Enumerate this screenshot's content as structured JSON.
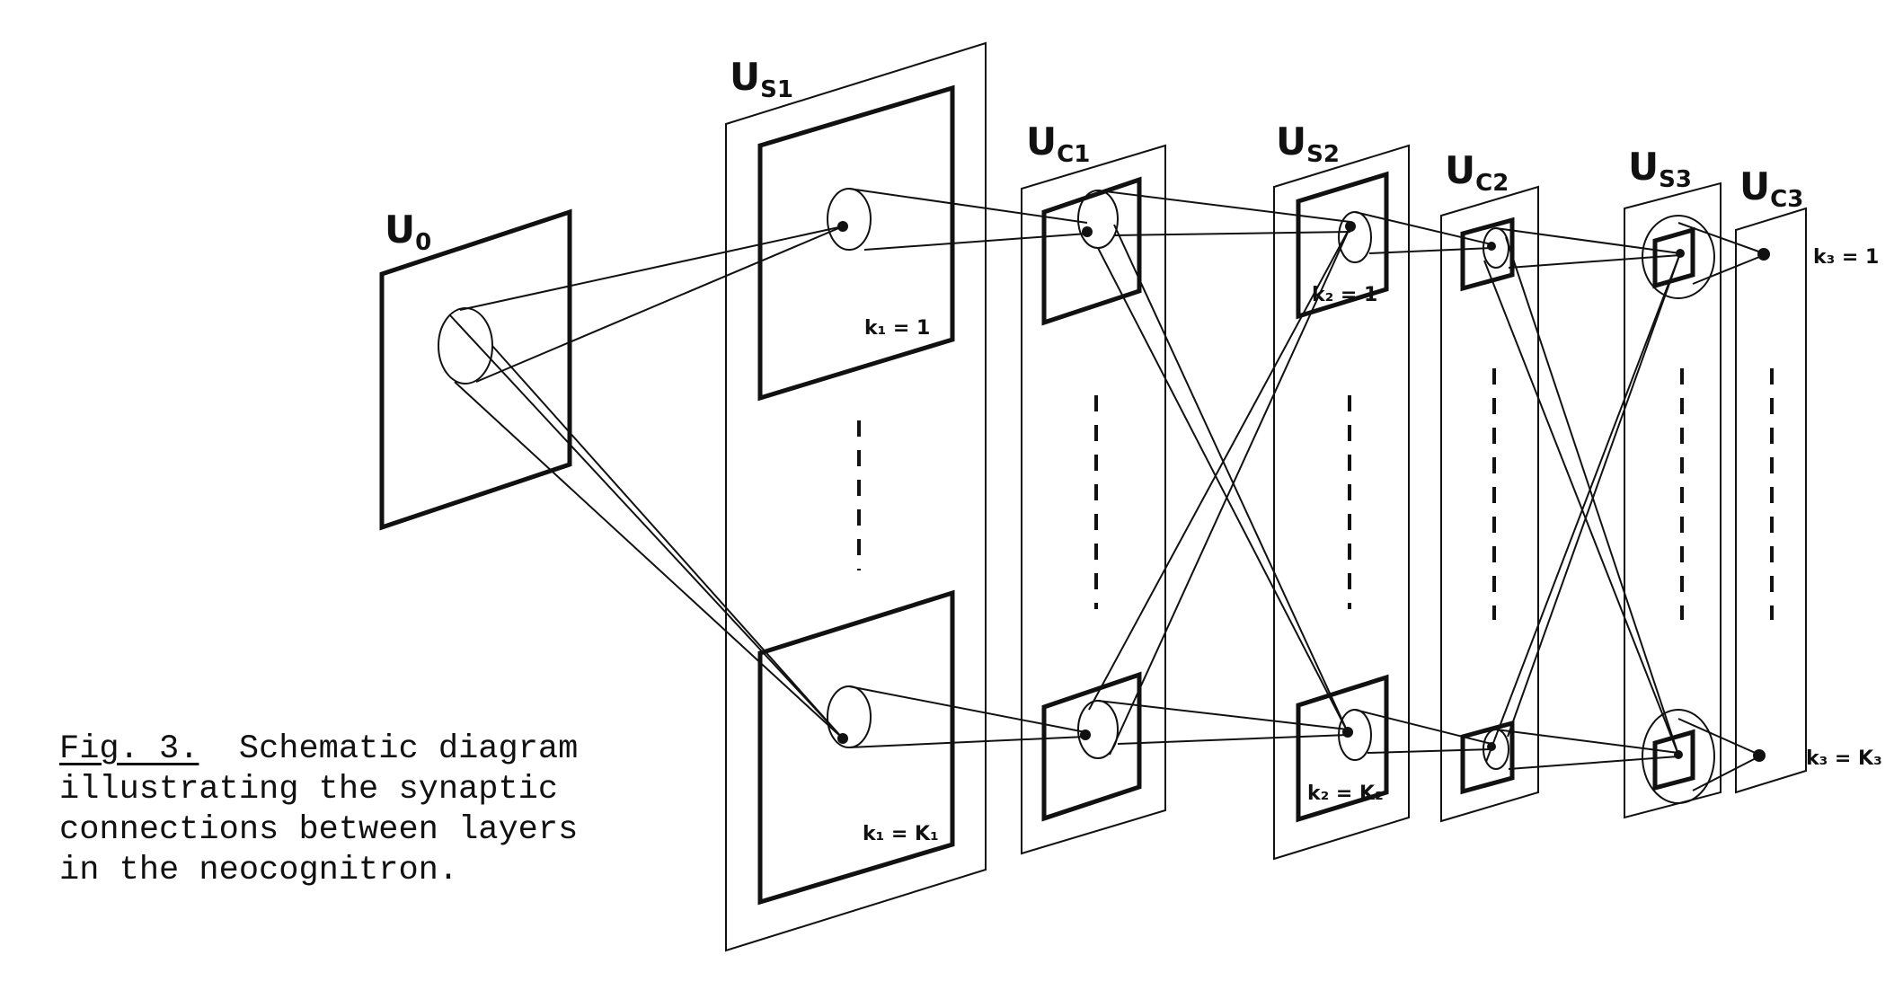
{
  "caption": {
    "figure_number": "Fig. 3.",
    "lines": [
      "Schematic diagram",
      "illustrating the synaptic",
      "connections between layers",
      "in the neocognitron."
    ]
  },
  "layers": [
    {
      "id": "U0",
      "base": "U",
      "sub": "0"
    },
    {
      "id": "US1",
      "base": "U",
      "sub": "S1"
    },
    {
      "id": "UC1",
      "base": "U",
      "sub": "C1"
    },
    {
      "id": "US2",
      "base": "U",
      "sub": "S2"
    },
    {
      "id": "UC2",
      "base": "U",
      "sub": "C2"
    },
    {
      "id": "US3",
      "base": "U",
      "sub": "S3"
    },
    {
      "id": "UC3",
      "base": "U",
      "sub": "C3"
    }
  ],
  "plane_labels": {
    "k1_top": "k₁ = 1",
    "k1_bottom": "k₁ = K₁",
    "k2_top": "k₂ = 1",
    "k2_bottom": "k₂ = K₂",
    "k3_top": "k₃ = 1",
    "k3_bottom": "k₃ = K₃"
  },
  "colors": {
    "ink": "#111111",
    "paper": "#ffffff"
  }
}
